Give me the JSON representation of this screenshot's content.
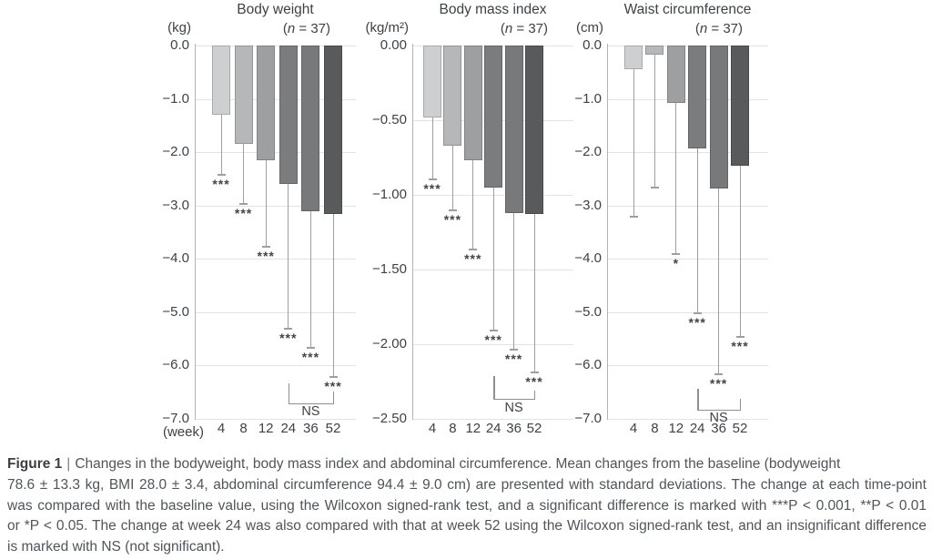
{
  "bar_colors": [
    "#cdcfd0",
    "#b5b7b8",
    "#9d9fa1",
    "#7a7c7e",
    "#77797b",
    "#595a5c"
  ],
  "chart_data": [
    {
      "type": "bar",
      "title": "Body weight",
      "n_label": "(n = 37)",
      "unit": "(kg)",
      "x_axis_label": "(week)",
      "categories": [
        "4",
        "8",
        "12",
        "24",
        "36",
        "52"
      ],
      "values": [
        -1.3,
        -1.85,
        -2.15,
        -2.6,
        -3.1,
        -3.15
      ],
      "error_ends": [
        -2.4,
        -2.95,
        -3.75,
        -5.3,
        -5.65,
        -6.2
      ],
      "significance": [
        "***",
        "***",
        "***",
        "***",
        "***",
        "***"
      ],
      "comparison": {
        "label": "NS",
        "between": [
          "24",
          "52"
        ]
      },
      "ylim": [
        0,
        -7.0
      ],
      "yticks": [
        "0.0",
        "−1.0",
        "−2.0",
        "−3.0",
        "−4.0",
        "−5.0",
        "−6.0",
        "−7.0"
      ],
      "grid": "horizontal",
      "legend": "none"
    },
    {
      "type": "bar",
      "title": "Body mass index",
      "n_label": "(n = 37)",
      "unit": "(kg/m²)",
      "x_axis_label": "",
      "categories": [
        "4",
        "8",
        "12",
        "24",
        "36",
        "52"
      ],
      "values": [
        -0.48,
        -0.67,
        -0.77,
        -0.95,
        -1.12,
        -1.13
      ],
      "error_ends": [
        -0.89,
        -1.1,
        -1.36,
        -1.9,
        -2.03,
        -2.18
      ],
      "significance": [
        "***",
        "***",
        "***",
        "***",
        "***",
        "***"
      ],
      "comparison": {
        "label": "NS",
        "between": [
          "24",
          "52"
        ]
      },
      "ylim": [
        0,
        -2.5
      ],
      "yticks": [
        "0.00",
        "−0.50",
        "−1.00",
        "−1.50",
        "−2.00",
        "−2.50"
      ],
      "grid": "horizontal",
      "legend": "none"
    },
    {
      "type": "bar",
      "title": "Waist circumference",
      "n_label": "(n = 37)",
      "unit": "(cm)",
      "x_axis_label": "",
      "categories": [
        "4",
        "8",
        "12",
        "24",
        "36",
        "52"
      ],
      "values": [
        -0.45,
        -0.17,
        -1.08,
        -1.93,
        -2.68,
        -2.25
      ],
      "error_ends": [
        -3.2,
        -2.65,
        -3.9,
        -5.0,
        -6.15,
        -5.45
      ],
      "significance": [
        "",
        "",
        "*",
        "***",
        "***",
        "***"
      ],
      "comparison": {
        "label": "NS",
        "between": [
          "24",
          "52"
        ]
      },
      "ylim": [
        0,
        -7.0
      ],
      "yticks": [
        "0.0",
        "−1.0",
        "−2.0",
        "−3.0",
        "−4.0",
        "−5.0",
        "−6.0",
        "−7.0"
      ],
      "grid": "horizontal",
      "legend": "none"
    }
  ],
  "caption": {
    "label": "Figure 1",
    "separator": "|",
    "lines": [
      "Changes in the bodyweight, body mass index and abdominal circumference. Mean changes from the baseline (bodyweight",
      "78.6 ± 13.3 kg, BMI 28.0 ± 3.4, abdominal circumference 94.4 ± 9.0 cm) are presented with standard deviations. The change at each time-point",
      "was compared with the baseline value, using the Wilcoxon signed-rank test, and a significant difference is marked with ***P < 0.001, **P < 0.01",
      "or *P < 0.05. The change at week 24 was also compared with that at week 52 using the Wilcoxon signed-rank test, and an insignificant difference",
      "is marked with NS (not significant)."
    ]
  }
}
